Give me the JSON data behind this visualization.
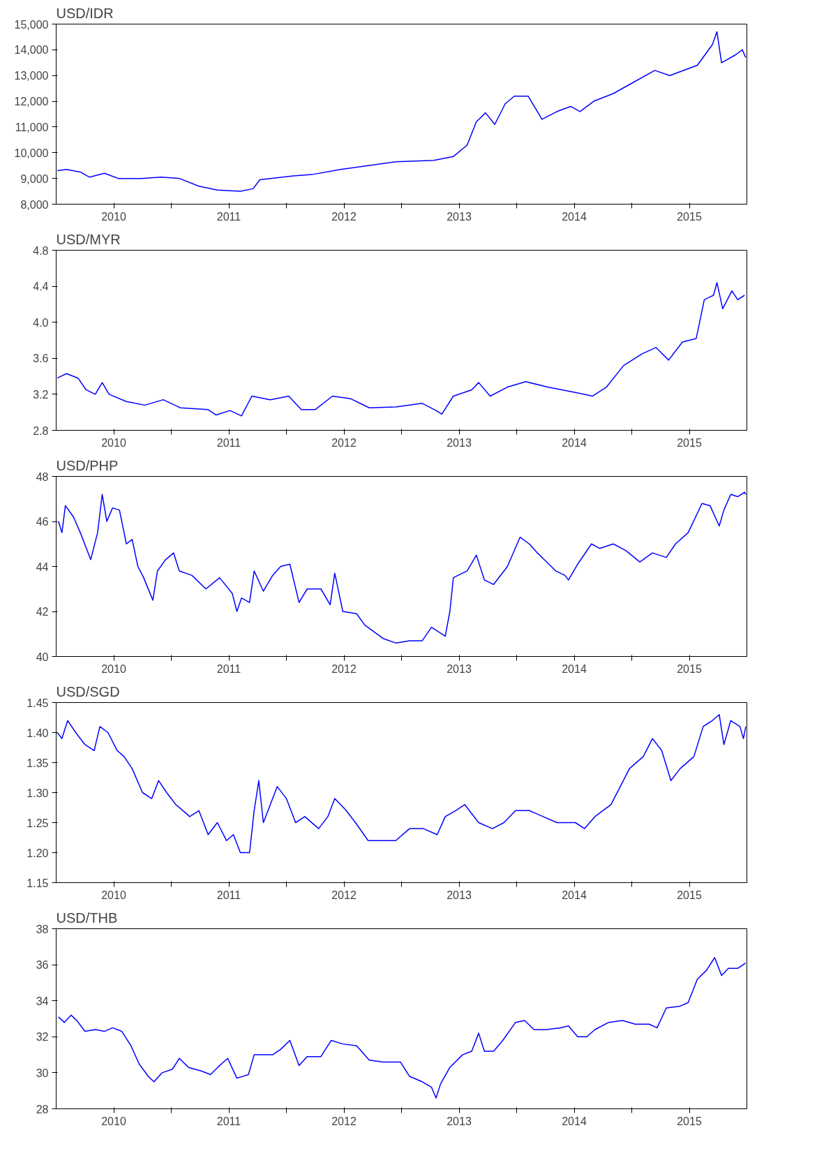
{
  "chart_data": [
    {
      "type": "line",
      "title": "USD/IDR",
      "xlim": [
        2010,
        2016
      ],
      "ylim": [
        8000,
        15000
      ],
      "yticks": [
        {
          "value": 8000,
          "label": "8,000"
        },
        {
          "value": 9000,
          "label": "9,000"
        },
        {
          "value": 10000,
          "label": "10,000"
        },
        {
          "value": 11000,
          "label": "11,000"
        },
        {
          "value": 12000,
          "label": "12,000"
        },
        {
          "value": 13000,
          "label": "13,000"
        },
        {
          "value": 14000,
          "label": "14,000"
        },
        {
          "value": 15000,
          "label": "15,000"
        }
      ],
      "xticks": [
        {
          "value": 2010.5,
          "label": "2010"
        },
        {
          "value": 2011,
          "label": null
        },
        {
          "value": 2011.5,
          "label": "2011"
        },
        {
          "value": 2012,
          "label": null
        },
        {
          "value": 2012.5,
          "label": "2012"
        },
        {
          "value": 2013,
          "label": null
        },
        {
          "value": 2013.5,
          "label": "2013"
        },
        {
          "value": 2014,
          "label": null
        },
        {
          "value": 2014.5,
          "label": "2014"
        },
        {
          "value": 2015,
          "label": null
        },
        {
          "value": 2015.5,
          "label": "2015"
        }
      ],
      "series": [
        {
          "color": "#0000ff",
          "x": [
            2010.01,
            2010.09,
            2010.21,
            2010.29,
            2010.42,
            2010.54,
            2010.74,
            2010.91,
            2011.07,
            2011.24,
            2011.4,
            2011.6,
            2011.71,
            2011.77,
            2012.06,
            2012.22,
            2012.47,
            2012.71,
            2012.95,
            2013.28,
            2013.45,
            2013.57,
            2013.65,
            2013.73,
            2013.81,
            2013.9,
            2013.98,
            2014.1,
            2014.22,
            2014.35,
            2014.47,
            2014.55,
            2014.67,
            2014.84,
            2015.0,
            2015.2,
            2015.33,
            2015.57,
            2015.7,
            2015.74,
            2015.78,
            2015.9,
            2015.96,
            2015.99
          ],
          "values": [
            9300,
            9350,
            9250,
            9050,
            9200,
            9000,
            9000,
            9050,
            9000,
            8700,
            8550,
            8500,
            8600,
            8950,
            9100,
            9150,
            9350,
            9500,
            9650,
            9700,
            9850,
            10300,
            11200,
            11550,
            11100,
            11900,
            12200,
            12200,
            11300,
            11600,
            11800,
            11600,
            12000,
            12300,
            12700,
            13200,
            13000,
            13400,
            14200,
            14700,
            13500,
            13800,
            14000,
            13700
          ]
        }
      ]
    },
    {
      "type": "line",
      "title": "USD/MYR",
      "xlim": [
        2010,
        2016
      ],
      "ylim": [
        2.8,
        4.8
      ],
      "yticks": [
        {
          "value": 2.8,
          "label": "2.8"
        },
        {
          "value": 3.2,
          "label": "3.2"
        },
        {
          "value": 3.6,
          "label": "3.6"
        },
        {
          "value": 4.0,
          "label": "4.0"
        },
        {
          "value": 4.4,
          "label": "4.4"
        },
        {
          "value": 4.8,
          "label": "4.8"
        }
      ],
      "xticks": [
        {
          "value": 2010.5,
          "label": "2010"
        },
        {
          "value": 2011,
          "label": null
        },
        {
          "value": 2011.5,
          "label": "2011"
        },
        {
          "value": 2012,
          "label": null
        },
        {
          "value": 2012.5,
          "label": "2012"
        },
        {
          "value": 2013,
          "label": null
        },
        {
          "value": 2013.5,
          "label": "2013"
        },
        {
          "value": 2014,
          "label": null
        },
        {
          "value": 2014.5,
          "label": "2014"
        },
        {
          "value": 2015,
          "label": null
        },
        {
          "value": 2015.5,
          "label": "2015"
        }
      ],
      "series": [
        {
          "color": "#0000ff",
          "x": [
            2010.01,
            2010.09,
            2010.19,
            2010.26,
            2010.34,
            2010.4,
            2010.46,
            2010.61,
            2010.77,
            2010.93,
            2011.08,
            2011.32,
            2011.39,
            2011.51,
            2011.61,
            2011.7,
            2011.86,
            2012.02,
            2012.13,
            2012.25,
            2012.4,
            2012.56,
            2012.72,
            2012.95,
            2013.18,
            2013.3,
            2013.35,
            2013.45,
            2013.61,
            2013.67,
            2013.77,
            2013.92,
            2014.08,
            2014.27,
            2014.51,
            2014.66,
            2014.78,
            2014.93,
            2015.09,
            2015.21,
            2015.32,
            2015.44,
            2015.56,
            2015.63,
            2015.71,
            2015.74,
            2015.79,
            2015.87,
            2015.92,
            2015.98
          ],
          "values": [
            3.38,
            3.43,
            3.38,
            3.25,
            3.2,
            3.33,
            3.2,
            3.12,
            3.08,
            3.14,
            3.05,
            3.03,
            2.97,
            3.02,
            2.96,
            3.18,
            3.14,
            3.18,
            3.03,
            3.03,
            3.18,
            3.15,
            3.05,
            3.06,
            3.1,
            3.02,
            2.98,
            3.18,
            3.25,
            3.33,
            3.18,
            3.28,
            3.34,
            3.28,
            3.22,
            3.18,
            3.28,
            3.52,
            3.65,
            3.72,
            3.58,
            3.78,
            3.82,
            4.25,
            4.3,
            4.44,
            4.15,
            4.35,
            4.25,
            4.3
          ]
        }
      ]
    },
    {
      "type": "line",
      "title": "USD/PHP",
      "xlim": [
        2010,
        2016
      ],
      "ylim": [
        40,
        48
      ],
      "yticks": [
        40,
        42,
        44,
        46,
        48
      ],
      "xticks": [
        {
          "value": 2010.5,
          "label": "2010"
        },
        {
          "value": 2011,
          "label": null
        },
        {
          "value": 2011.5,
          "label": "2011"
        },
        {
          "value": 2012,
          "label": null
        },
        {
          "value": 2012.5,
          "label": "2012"
        },
        {
          "value": 2013,
          "label": null
        },
        {
          "value": 2013.5,
          "label": "2013"
        },
        {
          "value": 2014,
          "label": null
        },
        {
          "value": 2014.5,
          "label": "2014"
        },
        {
          "value": 2015,
          "label": null
        },
        {
          "value": 2015.5,
          "label": "2015"
        }
      ],
      "series": [
        {
          "color": "#0000ff",
          "x": [
            2010.02,
            2010.05,
            2010.08,
            2010.15,
            2010.21,
            2010.3,
            2010.36,
            2010.4,
            2010.44,
            2010.49,
            2010.55,
            2010.61,
            2010.66,
            2010.71,
            2010.76,
            2010.84,
            2010.88,
            2010.95,
            2011.02,
            2011.07,
            2011.18,
            2011.3,
            2011.42,
            2011.53,
            2011.57,
            2011.61,
            2011.68,
            2011.72,
            2011.8,
            2011.88,
            2011.95,
            2012.03,
            2012.11,
            2012.18,
            2012.3,
            2012.38,
            2012.42,
            2012.49,
            2012.61,
            2012.68,
            2012.84,
            2012.95,
            2013.07,
            2013.18,
            2013.26,
            2013.38,
            2013.42,
            2013.45,
            2013.57,
            2013.65,
            2013.72,
            2013.8,
            2013.92,
            2014.03,
            2014.11,
            2014.18,
            2014.26,
            2014.34,
            2014.42,
            2014.45,
            2014.53,
            2014.65,
            2014.72,
            2014.84,
            2014.95,
            2015.07,
            2015.18,
            2015.3,
            2015.38,
            2015.49,
            2015.61,
            2015.68,
            2015.76,
            2015.8,
            2015.86,
            2015.92,
            2015.98,
            2015.99
          ],
          "values": [
            46.0,
            45.5,
            46.7,
            46.2,
            45.5,
            44.3,
            45.5,
            47.2,
            46.0,
            46.6,
            46.5,
            45.0,
            45.2,
            44.0,
            43.5,
            42.5,
            43.8,
            44.3,
            44.6,
            43.8,
            43.6,
            43.0,
            43.5,
            42.8,
            42.0,
            42.6,
            42.4,
            43.8,
            42.9,
            43.6,
            44.0,
            44.1,
            42.4,
            43.0,
            43.0,
            42.3,
            43.7,
            42.0,
            41.9,
            41.4,
            40.8,
            40.6,
            40.7,
            40.7,
            41.3,
            40.9,
            42.0,
            43.5,
            43.8,
            44.5,
            43.4,
            43.2,
            44.0,
            45.3,
            45.0,
            44.6,
            44.2,
            43.8,
            43.6,
            43.4,
            44.1,
            45.0,
            44.8,
            45.0,
            44.7,
            44.2,
            44.6,
            44.4,
            45.0,
            45.5,
            46.8,
            46.7,
            45.8,
            46.5,
            47.2,
            47.1,
            47.3,
            47.2
          ]
        }
      ]
    },
    {
      "type": "line",
      "title": "USD/SGD",
      "xlim": [
        2010,
        2016
      ],
      "ylim": [
        1.15,
        1.45
      ],
      "yticks": [
        {
          "value": 1.15,
          "label": "1.15"
        },
        {
          "value": 1.2,
          "label": "1.20"
        },
        {
          "value": 1.25,
          "label": "1.25"
        },
        {
          "value": 1.3,
          "label": "1.30"
        },
        {
          "value": 1.35,
          "label": "1.35"
        },
        {
          "value": 1.4,
          "label": "1.40"
        },
        {
          "value": 1.45,
          "label": "1.45"
        }
      ],
      "xticks": [
        {
          "value": 2010.5,
          "label": "2010"
        },
        {
          "value": 2011,
          "label": null
        },
        {
          "value": 2011.5,
          "label": "2011"
        },
        {
          "value": 2012,
          "label": null
        },
        {
          "value": 2012.5,
          "label": "2012"
        },
        {
          "value": 2013,
          "label": null
        },
        {
          "value": 2013.5,
          "label": "2013"
        },
        {
          "value": 2014,
          "label": null
        },
        {
          "value": 2014.5,
          "label": "2014"
        },
        {
          "value": 2015,
          "label": null
        },
        {
          "value": 2015.5,
          "label": "2015"
        }
      ],
      "series": [
        {
          "color": "#0000ff",
          "x": [
            2010.01,
            2010.05,
            2010.1,
            2010.17,
            2010.25,
            2010.33,
            2010.38,
            2010.45,
            2010.53,
            2010.59,
            2010.66,
            2010.75,
            2010.83,
            2010.89,
            2010.96,
            2011.04,
            2011.16,
            2011.24,
            2011.32,
            2011.4,
            2011.48,
            2011.54,
            2011.6,
            2011.68,
            2011.72,
            2011.76,
            2011.8,
            2011.86,
            2011.92,
            2012.0,
            2012.08,
            2012.16,
            2012.28,
            2012.36,
            2012.42,
            2012.52,
            2012.6,
            2012.71,
            2012.83,
            2012.95,
            2013.07,
            2013.19,
            2013.31,
            2013.38,
            2013.47,
            2013.55,
            2013.67,
            2013.79,
            2013.89,
            2013.99,
            2014.11,
            2014.23,
            2014.35,
            2014.51,
            2014.59,
            2014.68,
            2014.82,
            2014.98,
            2015.1,
            2015.18,
            2015.26,
            2015.34,
            2015.42,
            2015.54,
            2015.62,
            2015.7,
            2015.76,
            2015.8,
            2015.86,
            2015.94,
            2015.97,
            2015.99
          ],
          "values": [
            1.4,
            1.39,
            1.42,
            1.4,
            1.38,
            1.37,
            1.41,
            1.4,
            1.37,
            1.36,
            1.34,
            1.3,
            1.29,
            1.32,
            1.3,
            1.28,
            1.26,
            1.27,
            1.23,
            1.25,
            1.22,
            1.23,
            1.2,
            1.2,
            1.27,
            1.32,
            1.25,
            1.28,
            1.31,
            1.29,
            1.25,
            1.26,
            1.24,
            1.26,
            1.29,
            1.27,
            1.25,
            1.22,
            1.22,
            1.22,
            1.24,
            1.24,
            1.23,
            1.26,
            1.27,
            1.28,
            1.25,
            1.24,
            1.25,
            1.27,
            1.27,
            1.26,
            1.25,
            1.25,
            1.24,
            1.26,
            1.28,
            1.34,
            1.36,
            1.39,
            1.37,
            1.32,
            1.34,
            1.36,
            1.41,
            1.42,
            1.43,
            1.38,
            1.42,
            1.41,
            1.39,
            1.41
          ]
        }
      ]
    },
    {
      "type": "line",
      "title": "USD/THB",
      "xlim": [
        2010,
        2016
      ],
      "ylim": [
        28,
        38
      ],
      "yticks": [
        28,
        30,
        32,
        34,
        36,
        38
      ],
      "xticks": [
        {
          "value": 2010.5,
          "label": "2010"
        },
        {
          "value": 2011,
          "label": null
        },
        {
          "value": 2011.5,
          "label": "2011"
        },
        {
          "value": 2012,
          "label": null
        },
        {
          "value": 2012.5,
          "label": "2012"
        },
        {
          "value": 2013,
          "label": null
        },
        {
          "value": 2013.5,
          "label": "2013"
        },
        {
          "value": 2014,
          "label": null
        },
        {
          "value": 2014.5,
          "label": "2014"
        },
        {
          "value": 2015,
          "label": null
        },
        {
          "value": 2015.5,
          "label": "2015"
        }
      ],
      "series": [
        {
          "color": "#0000ff",
          "x": [
            2010.02,
            2010.07,
            2010.13,
            2010.18,
            2010.25,
            2010.34,
            2010.42,
            2010.49,
            2010.57,
            2010.65,
            2010.72,
            2010.8,
            2010.85,
            2010.92,
            2011.01,
            2011.07,
            2011.15,
            2011.26,
            2011.34,
            2011.42,
            2011.49,
            2011.57,
            2011.67,
            2011.72,
            2011.8,
            2011.88,
            2011.95,
            2012.03,
            2012.11,
            2012.18,
            2012.3,
            2012.39,
            2012.49,
            2012.61,
            2012.72,
            2012.84,
            2012.99,
            2013.07,
            2013.18,
            2013.26,
            2013.3,
            2013.34,
            2013.42,
            2013.53,
            2013.61,
            2013.67,
            2013.72,
            2013.8,
            2013.88,
            2013.99,
            2014.07,
            2014.15,
            2014.26,
            2014.38,
            2014.45,
            2014.53,
            2014.61,
            2014.68,
            2014.8,
            2014.92,
            2015.03,
            2015.15,
            2015.22,
            2015.3,
            2015.42,
            2015.49,
            2015.57,
            2015.65,
            2015.72,
            2015.78,
            2015.84,
            2015.92,
            2015.99
          ],
          "values": [
            33.1,
            32.8,
            33.2,
            32.9,
            32.3,
            32.4,
            32.3,
            32.5,
            32.3,
            31.5,
            30.5,
            29.8,
            29.5,
            30.0,
            30.2,
            30.8,
            30.3,
            30.1,
            29.9,
            30.4,
            30.8,
            29.7,
            29.9,
            31.0,
            31.0,
            31.0,
            31.3,
            31.8,
            30.4,
            30.9,
            30.9,
            31.8,
            31.6,
            31.5,
            30.7,
            30.6,
            30.6,
            29.8,
            29.5,
            29.2,
            28.6,
            29.4,
            30.3,
            31.0,
            31.2,
            32.2,
            31.2,
            31.2,
            31.8,
            32.8,
            32.9,
            32.4,
            32.4,
            32.5,
            32.6,
            32.0,
            32.0,
            32.4,
            32.8,
            32.9,
            32.7,
            32.7,
            32.5,
            33.6,
            33.7,
            33.9,
            35.2,
            35.7,
            36.4,
            35.4,
            35.8,
            35.8,
            36.1
          ]
        }
      ]
    }
  ]
}
